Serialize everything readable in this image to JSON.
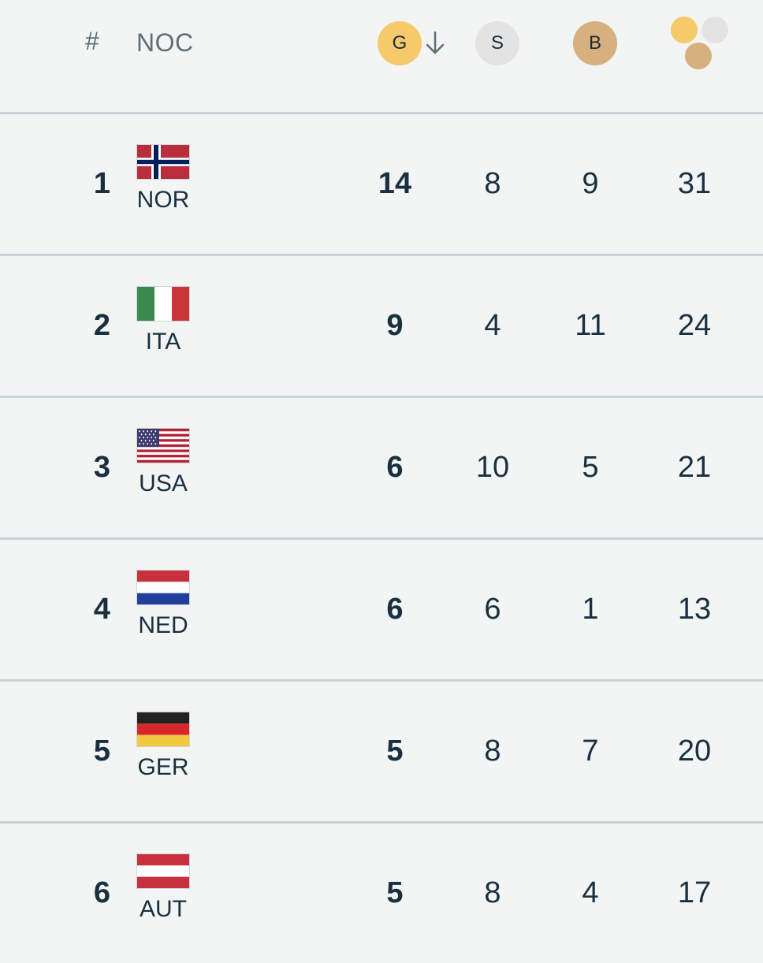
{
  "header": {
    "rank_label": "#",
    "noc_label": "NOC",
    "gold_label": "G",
    "silver_label": "S",
    "bronze_label": "B",
    "sort_icon": "arrow-down-icon",
    "total_icon": "medals-total-icon"
  },
  "colors": {
    "gold": "#f6c96a",
    "silver": "#e3e3e3",
    "bronze": "#d7b07f",
    "text": "#183040",
    "divider": "#c9d3d6"
  },
  "rows": [
    {
      "rank": "1",
      "code": "NOR",
      "flag": "norway-flag",
      "gold": "14",
      "silver": "8",
      "bronze": "9",
      "total": "31"
    },
    {
      "rank": "2",
      "code": "ITA",
      "flag": "italy-flag",
      "gold": "9",
      "silver": "4",
      "bronze": "11",
      "total": "24"
    },
    {
      "rank": "3",
      "code": "USA",
      "flag": "usa-flag",
      "gold": "6",
      "silver": "10",
      "bronze": "5",
      "total": "21"
    },
    {
      "rank": "4",
      "code": "NED",
      "flag": "netherlands-flag",
      "gold": "6",
      "silver": "6",
      "bronze": "1",
      "total": "13"
    },
    {
      "rank": "5",
      "code": "GER",
      "flag": "germany-flag",
      "gold": "5",
      "silver": "8",
      "bronze": "7",
      "total": "20"
    },
    {
      "rank": "6",
      "code": "AUT",
      "flag": "austria-flag",
      "gold": "5",
      "silver": "8",
      "bronze": "4",
      "total": "17"
    }
  ]
}
